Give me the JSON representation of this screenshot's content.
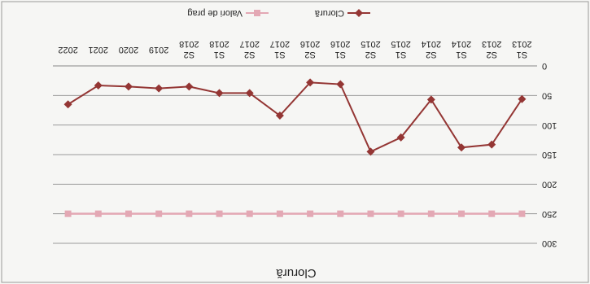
{
  "chart_data": {
    "type": "line",
    "title": "Clorură",
    "categories": [
      "S1\n2013",
      "S2\n2013",
      "S1\n2014",
      "S2\n2014",
      "S1\n2015",
      "S2\n2015",
      "S1\n2016",
      "S2\n2016",
      "S1\n2017",
      "S2\n2017",
      "S1\n2018",
      "S2\n2018",
      "2019",
      "2020",
      "2021",
      "2022"
    ],
    "series": [
      {
        "name": "Clorură",
        "color": "#943634",
        "marker": "diamond",
        "values": [
          56,
          133,
          138,
          57,
          121,
          145,
          31,
          28,
          84,
          46,
          46,
          35,
          38,
          35,
          33,
          65
        ]
      },
      {
        "name": "Valori de prag",
        "color": "#e3a8b4",
        "marker": "square",
        "values": [
          250,
          250,
          250,
          250,
          250,
          250,
          250,
          250,
          250,
          250,
          250,
          250,
          250,
          250,
          250,
          250
        ]
      }
    ],
    "ylim": [
      0,
      300
    ],
    "yticks": [
      0,
      50,
      100,
      150,
      200,
      250,
      300
    ],
    "y_inverted": true,
    "grid": "horizontal",
    "legend": "bottom"
  }
}
